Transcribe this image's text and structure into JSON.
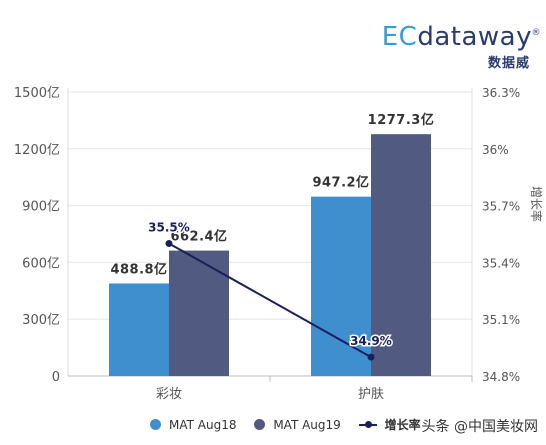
{
  "logo": {
    "brand_ec": "EC",
    "brand_rest": "dataway",
    "reg": "®",
    "sub": "数据威"
  },
  "watermark": "头条 @中国美妆网",
  "colors": {
    "series1": "#3f8fcf",
    "series2": "#515a80",
    "line": "#1a1f5c",
    "axis": "#555555",
    "grid": "#e6e6e6"
  },
  "chart_data": {
    "type": "bar",
    "categories": [
      "彩妆",
      "护肤"
    ],
    "series": [
      {
        "name": "MAT Aug18",
        "values": [
          488.8,
          947.2
        ],
        "labels": [
          "488.8亿",
          "947.2亿"
        ]
      },
      {
        "name": "MAT Aug19",
        "values": [
          662.4,
          1277.3
        ],
        "labels": [
          "662.4亿",
          "1277.3亿"
        ]
      }
    ],
    "line_series": {
      "name": "增长率",
      "values": [
        35.5,
        34.9
      ],
      "labels": [
        "35.5%",
        "34.9%"
      ]
    },
    "y_left": {
      "ticks": [
        "0",
        "300亿",
        "600亿",
        "900亿",
        "1200亿",
        "1500亿"
      ],
      "range": [
        0,
        1500
      ]
    },
    "y_right": {
      "label": "增长率",
      "ticks": [
        "34.8%",
        "35.1%",
        "35.4%",
        "35.7%",
        "36%",
        "36.3%"
      ],
      "range": [
        34.8,
        36.3
      ]
    },
    "grid": true,
    "legend_position": "bottom"
  }
}
